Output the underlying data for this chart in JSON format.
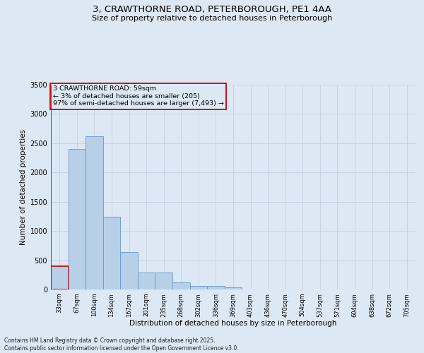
{
  "title_line1": "3, CRAWTHORNE ROAD, PETERBOROUGH, PE1 4AA",
  "title_line2": "Size of property relative to detached houses in Peterborough",
  "xlabel": "Distribution of detached houses by size in Peterborough",
  "ylabel": "Number of detached properties",
  "annotation_line1": "3 CRAWTHORNE ROAD: 59sqm",
  "annotation_line2": "← 3% of detached houses are smaller (205)",
  "annotation_line3": "97% of semi-detached houses are larger (7,493) →",
  "categories": [
    "33sqm",
    "67sqm",
    "100sqm",
    "134sqm",
    "167sqm",
    "201sqm",
    "235sqm",
    "268sqm",
    "302sqm",
    "336sqm",
    "369sqm",
    "403sqm",
    "436sqm",
    "470sqm",
    "504sqm",
    "537sqm",
    "571sqm",
    "604sqm",
    "638sqm",
    "672sqm",
    "705sqm"
  ],
  "values": [
    400,
    2400,
    2620,
    1240,
    640,
    290,
    290,
    115,
    60,
    55,
    35,
    0,
    0,
    0,
    0,
    0,
    0,
    0,
    0,
    0,
    0
  ],
  "bar_color": "#b8cfe8",
  "bar_edge_color": "#6699cc",
  "highlight_edge_color": "#cc0000",
  "vline_color": "#cc0000",
  "annotation_box_edge_color": "#cc0000",
  "ylim": [
    0,
    3500
  ],
  "yticks": [
    0,
    500,
    1000,
    1500,
    2000,
    2500,
    3000,
    3500
  ],
  "grid_color": "#c8d4e4",
  "background_color": "#dce8f4",
  "footer_line1": "Contains HM Land Registry data © Crown copyright and database right 2025.",
  "footer_line2": "Contains public sector information licensed under the Open Government Licence v3.0."
}
